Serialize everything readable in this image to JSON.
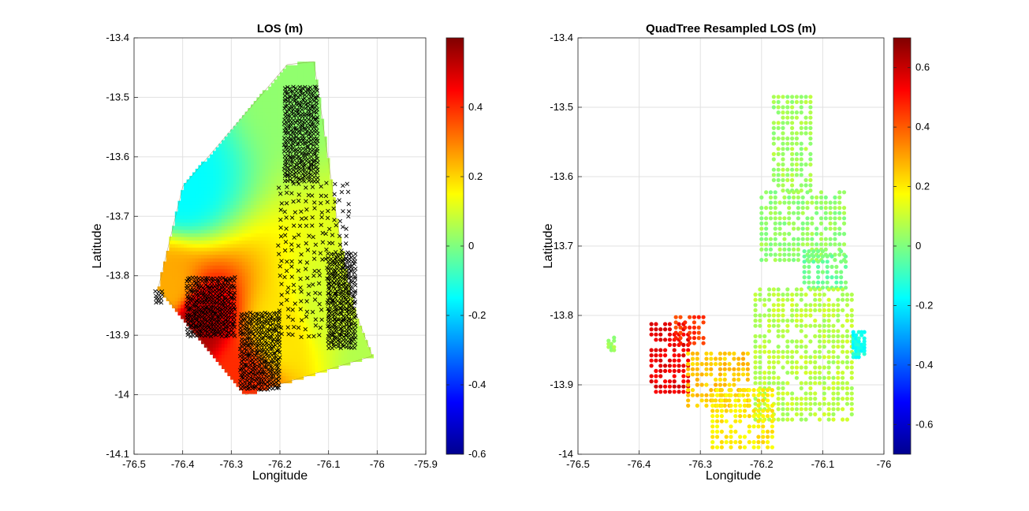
{
  "chart_data": [
    {
      "type": "scatter",
      "title": "LOS (m)",
      "xlabel": "Longitude",
      "ylabel": "Latitude",
      "xlim": [
        -76.5,
        -75.9
      ],
      "ylim": [
        -14.1,
        -13.4
      ],
      "xticks": [
        "-76.5",
        "-76.4",
        "-76.3",
        "-76.2",
        "-76.1",
        "-76",
        "-75.9"
      ],
      "yticks": [
        "-13.4",
        "-13.5",
        "-13.6",
        "-13.7",
        "-13.8",
        "-13.9",
        "-14",
        "-14.1"
      ],
      "grid": true,
      "colorbar": {
        "range": [
          -0.6,
          0.6
        ],
        "ticks": [
          "0.4",
          "0.2",
          "0",
          "-0.2",
          "-0.4",
          "-0.6"
        ]
      },
      "interpolated_field_boundary": [
        [
          -76.185,
          -13.445
        ],
        [
          -76.13,
          -13.44
        ],
        [
          -76.08,
          -13.72
        ],
        [
          -76.05,
          -13.85
        ],
        [
          -76.01,
          -13.935
        ],
        [
          -76.27,
          -14.0
        ],
        [
          -76.45,
          -13.82
        ],
        [
          -76.4,
          -13.65
        ]
      ],
      "field_values": [
        {
          "lon": -76.18,
          "lat": -13.46,
          "los": 0.02
        },
        {
          "lon": -76.4,
          "lat": -13.65,
          "los": -0.15
        },
        {
          "lon": -76.43,
          "lat": -13.82,
          "los": 0.25
        },
        {
          "lon": -76.37,
          "lat": -13.88,
          "los": 0.55
        },
        {
          "lon": -76.28,
          "lat": -13.97,
          "los": 0.4
        },
        {
          "lon": -76.2,
          "lat": -13.9,
          "los": 0.18
        },
        {
          "lon": -76.1,
          "lat": -13.85,
          "los": 0.1
        },
        {
          "lon": -76.01,
          "lat": -13.93,
          "los": 0.06
        }
      ],
      "marker": "x",
      "marker_color": "#000000",
      "sample_points_description_clusters": [
        {
          "lon_range": [
            -76.19,
            -76.12
          ],
          "lat_range": [
            -13.48,
            -13.64
          ]
        },
        {
          "lon_range": [
            -76.2,
            -76.06
          ],
          "lat_range": [
            -13.64,
            -13.9
          ]
        },
        {
          "lon_range": [
            -76.1,
            -76.04
          ],
          "lat_range": [
            -13.76,
            -13.92
          ]
        },
        {
          "lon_range": [
            -76.39,
            -76.29
          ],
          "lat_range": [
            -13.8,
            -13.9
          ]
        },
        {
          "lon_range": [
            -76.28,
            -76.2
          ],
          "lat_range": [
            -13.86,
            -13.99
          ]
        },
        {
          "lon_range": [
            -76.455,
            -76.44
          ],
          "lat_range": [
            -13.825,
            -13.845
          ]
        }
      ]
    },
    {
      "type": "scatter",
      "title": "QuadTree Resampled LOS (m)",
      "xlabel": "Longitude",
      "ylabel": "Latitude",
      "xlim": [
        -76.5,
        -76.0
      ],
      "ylim": [
        -14.0,
        -13.4
      ],
      "xticks": [
        "-76.5",
        "-76.4",
        "-76.3",
        "-76.2",
        "-76.1",
        "-76"
      ],
      "yticks": [
        "-13.4",
        "-13.5",
        "-13.6",
        "-13.7",
        "-13.8",
        "-13.9",
        "-14"
      ],
      "grid": true,
      "colorbar": {
        "range": [
          -0.7,
          0.7
        ],
        "ticks": [
          "0.6",
          "0.4",
          "0.2",
          "0",
          "-0.2",
          "-0.4",
          "-0.6"
        ]
      },
      "marker": "o",
      "clusters": [
        {
          "lon_range": [
            -76.18,
            -76.12
          ],
          "lat_range": [
            -13.48,
            -13.62
          ],
          "los": 0.05
        },
        {
          "lon_range": [
            -76.2,
            -76.06
          ],
          "lat_range": [
            -13.62,
            -13.72
          ],
          "los": 0.03
        },
        {
          "lon_range": [
            -76.13,
            -76.06
          ],
          "lat_range": [
            -13.7,
            -13.76
          ],
          "los": -0.02
        },
        {
          "lon_range": [
            -76.21,
            -76.05
          ],
          "lat_range": [
            -13.76,
            -13.95
          ],
          "los": 0.08
        },
        {
          "lon_range": [
            -76.05,
            -76.03
          ],
          "lat_range": [
            -13.82,
            -13.86
          ],
          "los": -0.15
        },
        {
          "lon_range": [
            -76.38,
            -76.32
          ],
          "lat_range": [
            -13.81,
            -13.91
          ],
          "los": 0.55
        },
        {
          "lon_range": [
            -76.34,
            -76.29
          ],
          "lat_range": [
            -13.8,
            -13.84
          ],
          "los": 0.45
        },
        {
          "lon_range": [
            -76.32,
            -76.22
          ],
          "lat_range": [
            -13.85,
            -13.93
          ],
          "los": 0.25
        },
        {
          "lon_range": [
            -76.28,
            -76.18
          ],
          "lat_range": [
            -13.9,
            -13.99
          ],
          "los": 0.2
        },
        {
          "lon_range": [
            -76.45,
            -76.44
          ],
          "lat_range": [
            -13.83,
            -13.85
          ],
          "los": 0.05
        }
      ]
    }
  ]
}
